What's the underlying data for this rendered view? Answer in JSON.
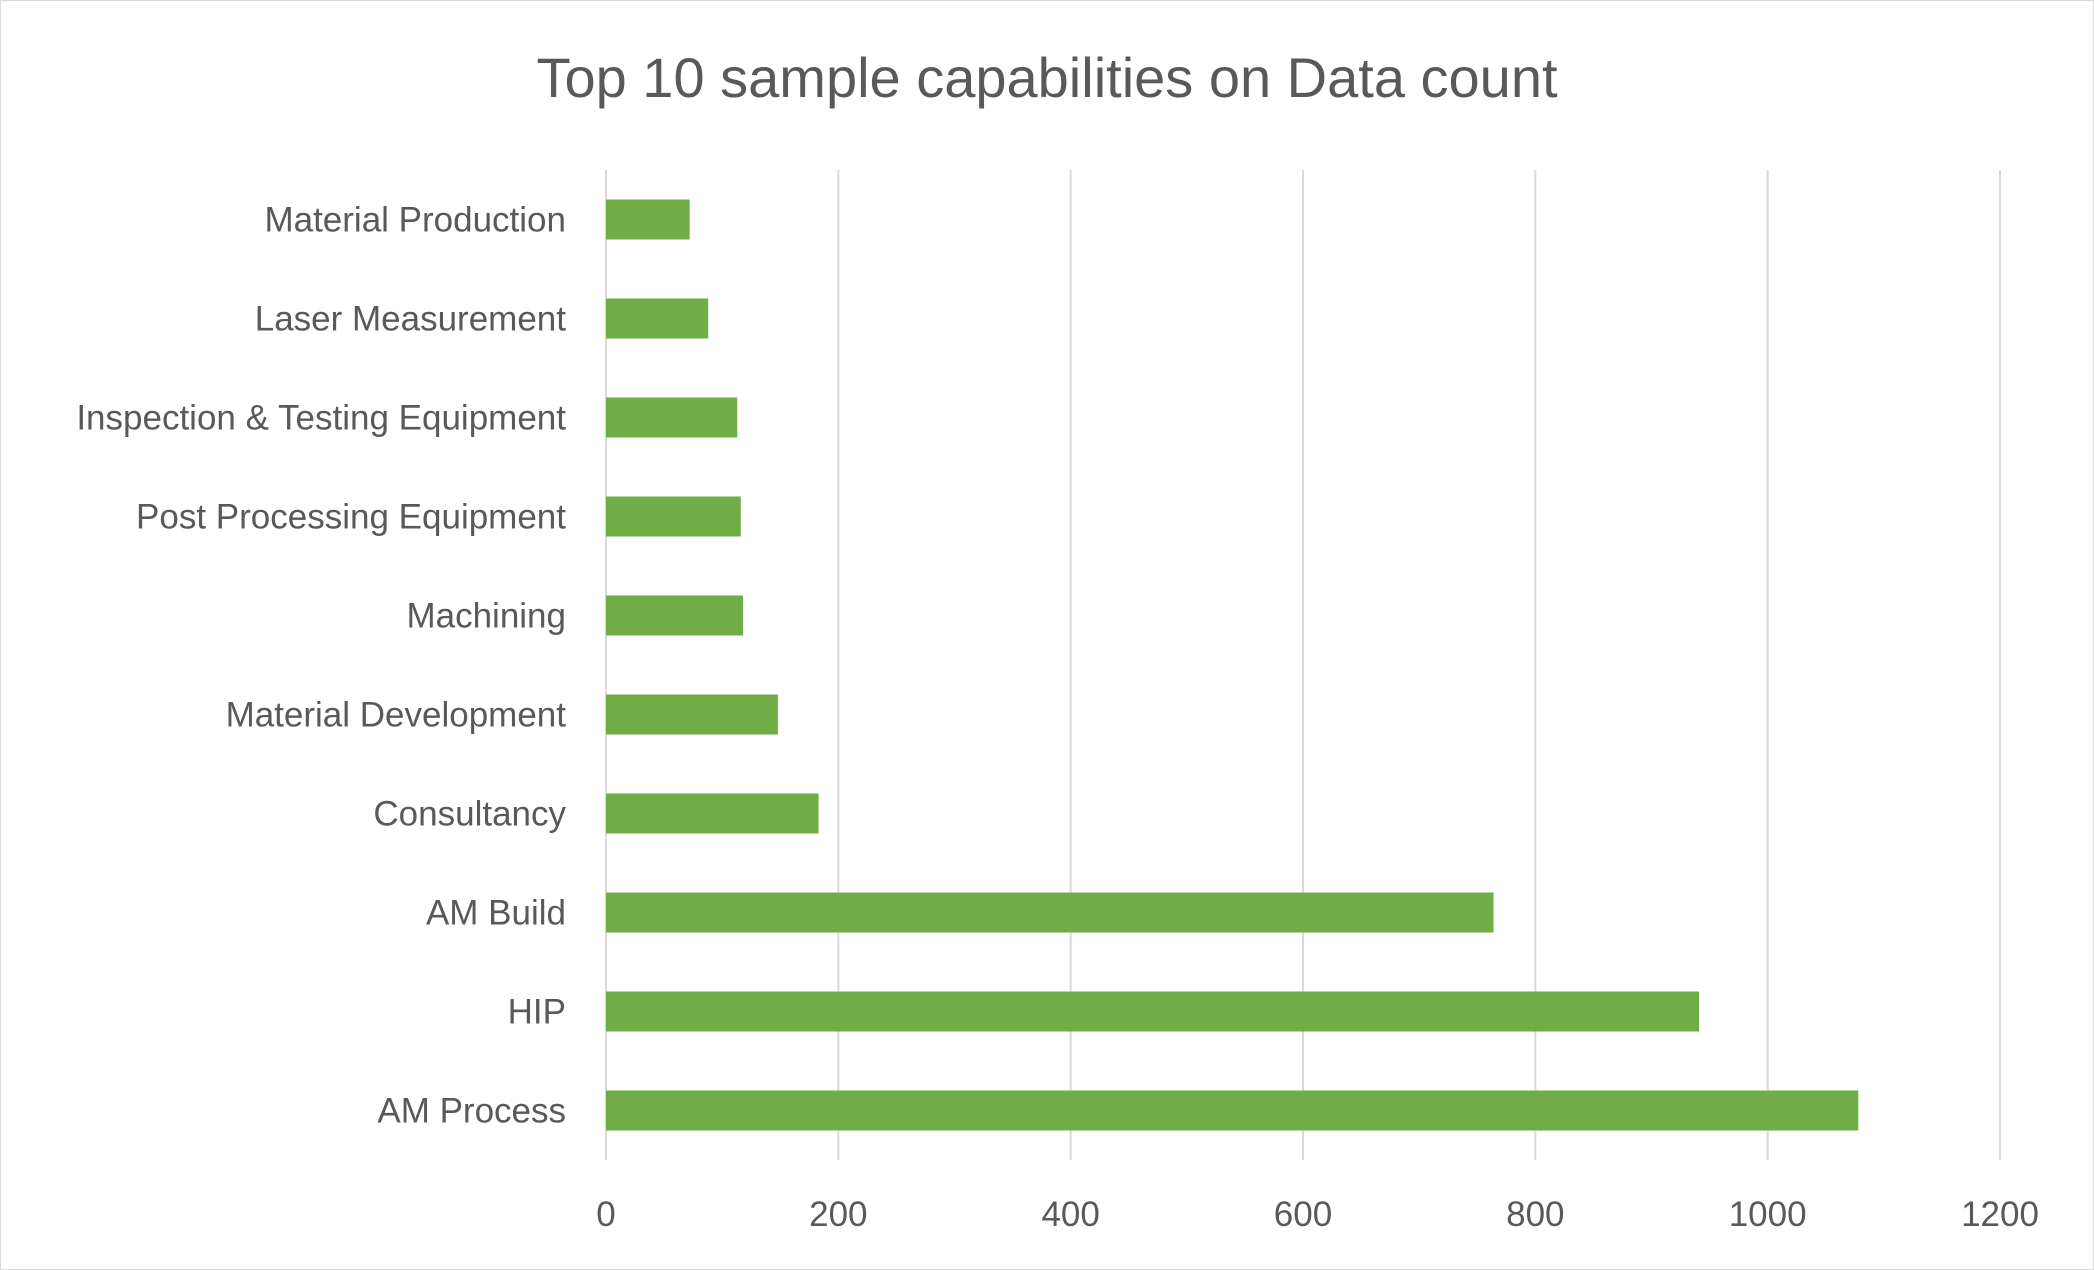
{
  "chart_data": {
    "type": "bar",
    "orientation": "horizontal",
    "title": "Top 10 sample capabilities on Data count",
    "xlabel": "",
    "ylabel": "",
    "categories": [
      "Material Production",
      "Laser Measurement",
      "Inspection & Testing Equipment",
      "Post Processing Equipment",
      "Machining",
      "Material Development",
      "Consultancy",
      "AM Build",
      "HIP",
      "AM Process"
    ],
    "values": [
      72,
      88,
      113,
      116,
      118,
      148,
      183,
      764,
      941,
      1078
    ],
    "xlim": [
      0,
      1200
    ],
    "xticks": [
      "0",
      "200",
      "400",
      "600",
      "800",
      "1000",
      "1200"
    ],
    "grid": "vertical",
    "legend": "none",
    "colors": {
      "bar": "#70ad47",
      "grid": "#d9d9d9",
      "text": "#595959"
    }
  }
}
